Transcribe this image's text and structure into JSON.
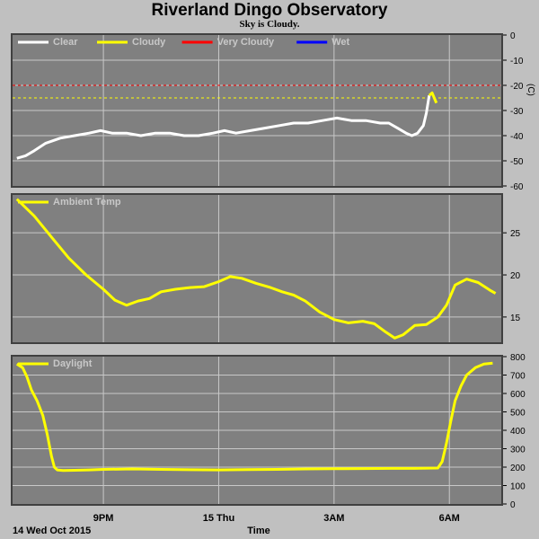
{
  "header": {
    "title": "Riverland Dingo Observatory",
    "subtitle": "Sky is Cloudy."
  },
  "colors": {
    "background": "#c0c0c0",
    "panel": "#808080",
    "grid": "#c8c8c8",
    "clear": "#ffffff",
    "cloudy": "#ffff00",
    "very_cloudy": "#ff0000",
    "wet": "#0000ff"
  },
  "chart_data": [
    {
      "type": "line",
      "id": "sky",
      "legend": [
        {
          "name": "Clear",
          "color": "#ffffff"
        },
        {
          "name": "Cloudy",
          "color": "#ffff00"
        },
        {
          "name": "Very Cloudy",
          "color": "#ff0000"
        },
        {
          "name": "Wet",
          "color": "#0000ff"
        }
      ],
      "ylabel": "(C)",
      "ylim": [
        -60,
        0
      ],
      "yticks": [
        "0",
        "-10",
        "-20",
        "-30",
        "-40",
        "-50",
        "-60"
      ],
      "thresholds": [
        {
          "value": -20,
          "color": "#ff0000"
        },
        {
          "value": -25,
          "color": "#ffff00"
        }
      ],
      "series": [
        {
          "name": "Clear",
          "color": "#ffffff",
          "points": [
            [
              0,
              -49
            ],
            [
              0.3,
              -48
            ],
            [
              0.6,
              -46
            ],
            [
              1.0,
              -43
            ],
            [
              1.5,
              -41
            ],
            [
              2.0,
              -40
            ],
            [
              2.5,
              -39
            ],
            [
              2.9,
              -38
            ],
            [
              3.3,
              -39
            ],
            [
              3.8,
              -39
            ],
            [
              4.3,
              -40
            ],
            [
              4.8,
              -39
            ],
            [
              5.3,
              -39
            ],
            [
              5.8,
              -40
            ],
            [
              6.3,
              -40
            ],
            [
              6.8,
              -39
            ],
            [
              7.2,
              -38
            ],
            [
              7.6,
              -39
            ],
            [
              8.1,
              -38
            ],
            [
              8.6,
              -37
            ],
            [
              9.1,
              -36
            ],
            [
              9.6,
              -35
            ],
            [
              10.1,
              -35
            ],
            [
              10.6,
              -34
            ],
            [
              11.1,
              -33
            ],
            [
              11.6,
              -34
            ],
            [
              12.1,
              -34
            ],
            [
              12.6,
              -35
            ],
            [
              12.9,
              -35
            ],
            [
              13.2,
              -37
            ],
            [
              13.5,
              -39
            ],
            [
              13.7,
              -40
            ],
            [
              13.9,
              -39
            ],
            [
              14.1,
              -36
            ],
            [
              14.2,
              -31
            ],
            [
              14.3,
              -24
            ]
          ]
        },
        {
          "name": "Cloudy",
          "color": "#ffff00",
          "points": [
            [
              14.3,
              -24
            ],
            [
              14.4,
              -23
            ],
            [
              14.55,
              -27
            ]
          ]
        }
      ]
    },
    {
      "type": "line",
      "id": "ambient",
      "legend": [
        {
          "name": "Ambient Temp",
          "color": "#ffff00"
        }
      ],
      "ylim": [
        12,
        29.5
      ],
      "yticks": [
        "15",
        "20",
        "25"
      ],
      "series": [
        {
          "name": "Ambient Temp",
          "color": "#ffff00",
          "points": [
            [
              0,
              29
            ],
            [
              0.6,
              27
            ],
            [
              1.2,
              24.5
            ],
            [
              1.8,
              22
            ],
            [
              2.4,
              20
            ],
            [
              3.0,
              18.3
            ],
            [
              3.4,
              17
            ],
            [
              3.8,
              16.4
            ],
            [
              4.2,
              16.9
            ],
            [
              4.6,
              17.2
            ],
            [
              5.0,
              18
            ],
            [
              5.5,
              18.3
            ],
            [
              6.0,
              18.5
            ],
            [
              6.5,
              18.6
            ],
            [
              7.0,
              19.2
            ],
            [
              7.4,
              19.8
            ],
            [
              7.8,
              19.6
            ],
            [
              8.3,
              19
            ],
            [
              8.8,
              18.5
            ],
            [
              9.2,
              18
            ],
            [
              9.6,
              17.6
            ],
            [
              10.0,
              16.9
            ],
            [
              10.5,
              15.6
            ],
            [
              11.0,
              14.7
            ],
            [
              11.5,
              14.3
            ],
            [
              12.0,
              14.5
            ],
            [
              12.4,
              14.2
            ],
            [
              12.8,
              13.2
            ],
            [
              13.1,
              12.5
            ],
            [
              13.4,
              12.9
            ],
            [
              13.8,
              14
            ],
            [
              14.2,
              14.1
            ],
            [
              14.6,
              15
            ],
            [
              14.9,
              16.4
            ],
            [
              15.2,
              18.8
            ],
            [
              15.6,
              19.5
            ],
            [
              16.0,
              19.1
            ],
            [
              16.4,
              18.2
            ],
            [
              16.6,
              17.8
            ]
          ]
        }
      ]
    },
    {
      "type": "line",
      "id": "daylight",
      "legend": [
        {
          "name": "Daylight",
          "color": "#ffff00"
        }
      ],
      "ylim": [
        0,
        800
      ],
      "yticks": [
        "0",
        "100",
        "200",
        "300",
        "400",
        "500",
        "600",
        "700",
        "800"
      ],
      "xlabel": "Time",
      "xticks": [
        {
          "label": "9PM",
          "x": 3
        },
        {
          "label": "15 Thu",
          "x": 7
        },
        {
          "label": "3AM",
          "x": 11
        },
        {
          "label": "6AM",
          "x": 15
        }
      ],
      "date_label": "14 Wed Oct 2015",
      "xlim": [
        -0.15,
        16.8
      ],
      "series": [
        {
          "name": "Daylight",
          "color": "#ffff00",
          "points": [
            [
              0,
              760
            ],
            [
              0.2,
              740
            ],
            [
              0.35,
              690
            ],
            [
              0.5,
              620
            ],
            [
              0.7,
              560
            ],
            [
              0.9,
              480
            ],
            [
              1.05,
              380
            ],
            [
              1.2,
              260
            ],
            [
              1.3,
              200
            ],
            [
              1.4,
              185
            ],
            [
              1.6,
              182
            ],
            [
              2.0,
              183
            ],
            [
              2.5,
              185
            ],
            [
              3.0,
              188
            ],
            [
              4.0,
              190
            ],
            [
              5.0,
              188
            ],
            [
              6.0,
              186
            ],
            [
              7.0,
              185
            ],
            [
              8.0,
              187
            ],
            [
              9.0,
              188
            ],
            [
              10.0,
              190
            ],
            [
              11.0,
              191
            ],
            [
              12.0,
              192
            ],
            [
              13.0,
              193
            ],
            [
              13.8,
              193
            ],
            [
              14.6,
              195
            ],
            [
              14.75,
              230
            ],
            [
              14.9,
              330
            ],
            [
              15.05,
              450
            ],
            [
              15.2,
              560
            ],
            [
              15.4,
              640
            ],
            [
              15.6,
              700
            ],
            [
              15.9,
              740
            ],
            [
              16.2,
              760
            ],
            [
              16.5,
              765
            ]
          ]
        }
      ]
    }
  ]
}
